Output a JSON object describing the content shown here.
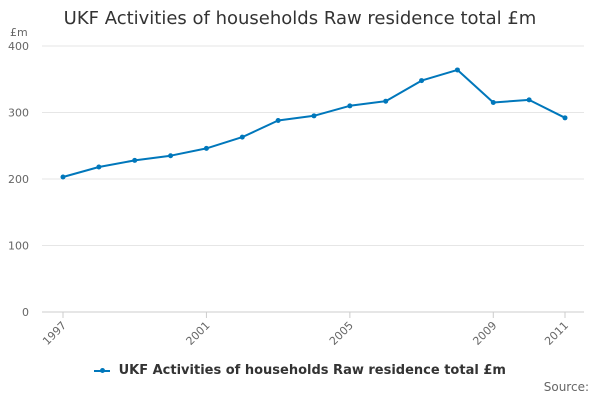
{
  "chart_data": {
    "type": "line",
    "title": "UKF Activities of households Raw residence total £m",
    "ylabel": "£m",
    "xlabel": "",
    "ylim": [
      0,
      400
    ],
    "yticks": [
      0,
      100,
      200,
      300,
      400
    ],
    "x": [
      1997,
      1998,
      1999,
      2000,
      2001,
      2002,
      2003,
      2004,
      2005,
      2006,
      2007,
      2008,
      2009,
      2010,
      2011
    ],
    "xtick_labels": [
      "1997",
      "2001",
      "2005",
      "2009",
      "2011"
    ],
    "series": [
      {
        "name": "UKF Activities of households Raw residence total £m",
        "color": "#0077bb",
        "values": [
          203,
          218,
          228,
          235,
          246,
          263,
          288,
          295,
          310,
          317,
          348,
          364,
          315,
          319,
          292
        ]
      }
    ],
    "grid": true,
    "legend_position": "bottom"
  },
  "footer": {
    "source_label": "Source:"
  }
}
